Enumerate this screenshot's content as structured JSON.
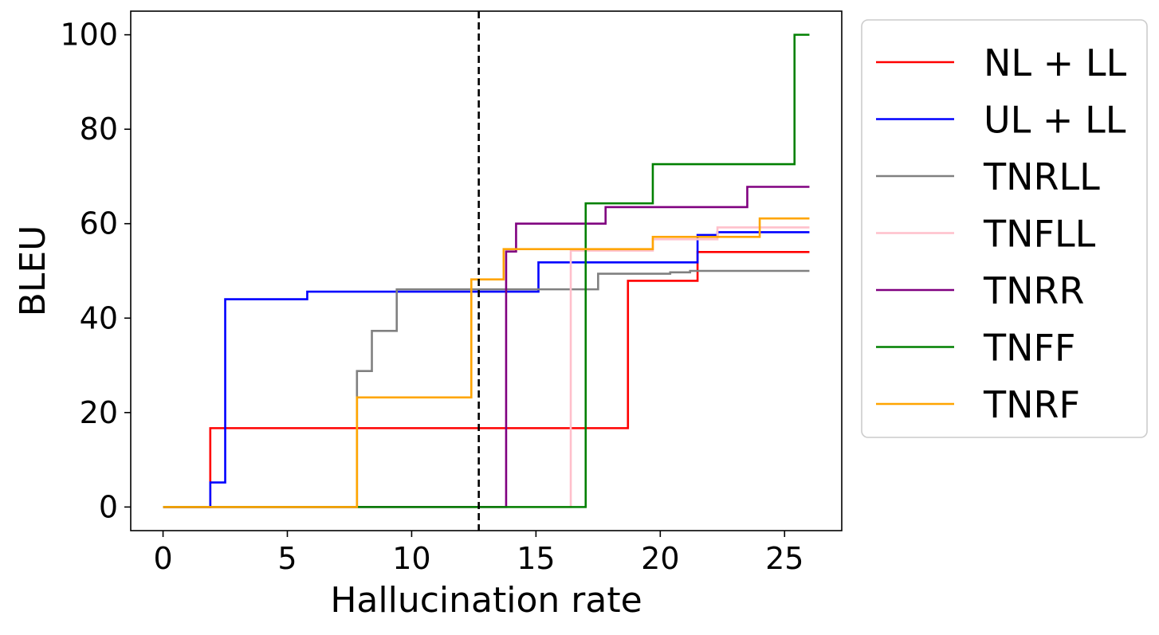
{
  "chart_data": {
    "type": "line",
    "title": "",
    "xlabel": "Hallucination rate",
    "ylabel": "BLEU",
    "xlim": [
      -1.3,
      27.3
    ],
    "ylim": [
      -5,
      105
    ],
    "xticks": [
      "0",
      "5",
      "10",
      "15",
      "20",
      "25"
    ],
    "yticks": [
      "0",
      "20",
      "40",
      "60",
      "80",
      "100"
    ],
    "grid": false,
    "legend_position": "outside-right",
    "reference_line": {
      "type": "vertical",
      "x": 12.7,
      "style": "dashed",
      "color": "#000000"
    },
    "series": [
      {
        "name": "NL + LL",
        "color": "#ff0000",
        "drawstyle": "steps-post",
        "x": [
          0,
          1.9,
          18.7,
          21.5,
          26
        ],
        "y": [
          0,
          16.7,
          47.9,
          54.0,
          54.0
        ]
      },
      {
        "name": "UL + LL",
        "color": "#0000ff",
        "drawstyle": "steps-post",
        "x": [
          0,
          1.9,
          2.5,
          5.8,
          15.1,
          21.5,
          22.3,
          26
        ],
        "y": [
          0,
          5.2,
          44.0,
          45.6,
          51.8,
          57.6,
          58.2,
          58.2
        ]
      },
      {
        "name": "TNRLL",
        "color": "#808080",
        "drawstyle": "steps-post",
        "x": [
          0,
          7.8,
          8.4,
          9.4,
          17.5,
          20.4,
          21.2,
          26
        ],
        "y": [
          0,
          28.8,
          37.3,
          46.1,
          49.4,
          49.7,
          50.0,
          50.0
        ]
      },
      {
        "name": "TNFLL",
        "color": "#ffc0cb",
        "drawstyle": "steps-post",
        "x": [
          0,
          16.4,
          19.7,
          22.3,
          26
        ],
        "y": [
          0,
          54.3,
          56.7,
          59.2,
          59.2
        ]
      },
      {
        "name": "TNRR",
        "color": "#800080",
        "drawstyle": "steps-post",
        "x": [
          0,
          13.8,
          14.2,
          17.8,
          23.5,
          26
        ],
        "y": [
          0,
          54.1,
          60.0,
          63.5,
          67.8,
          67.8
        ]
      },
      {
        "name": "TNFF",
        "color": "#008000",
        "drawstyle": "steps-post",
        "x": [
          0,
          17.0,
          19.7,
          25.4,
          26
        ],
        "y": [
          0,
          64.3,
          72.6,
          100,
          100
        ]
      },
      {
        "name": "TNRF",
        "color": "#ffa500",
        "drawstyle": "steps-post",
        "x": [
          0,
          7.8,
          12.4,
          13.7,
          19.7,
          24.0,
          26
        ],
        "y": [
          0,
          23.2,
          48.2,
          54.6,
          57.2,
          61.1,
          61.1
        ]
      }
    ]
  }
}
